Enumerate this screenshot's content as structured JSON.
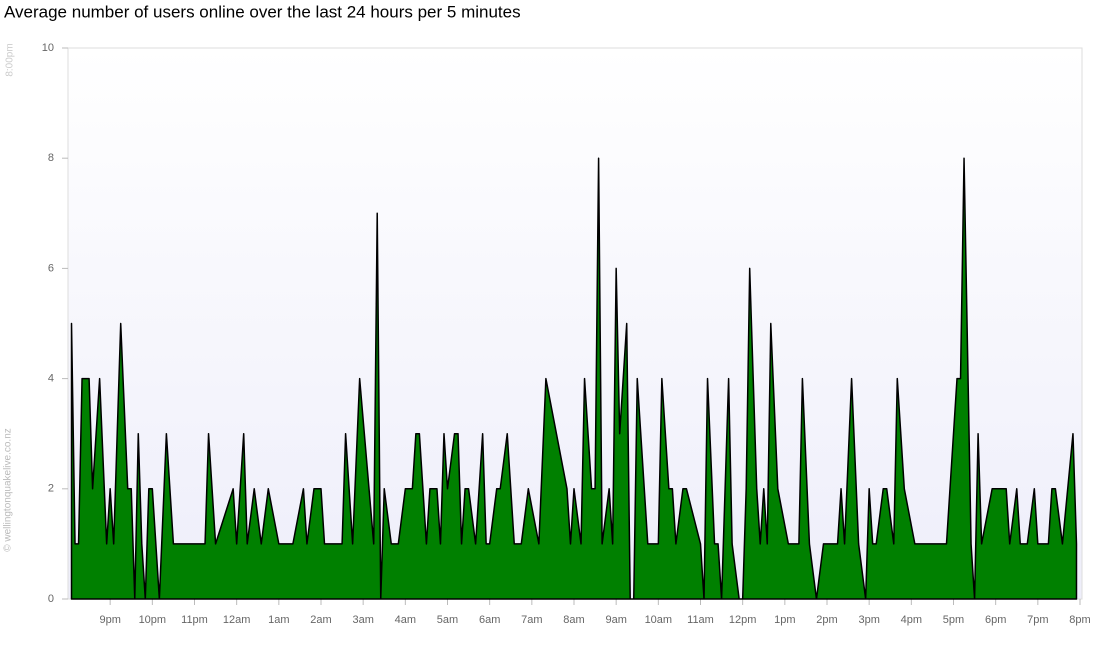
{
  "chart_data": {
    "type": "area",
    "title": "Average number of users online over the last 24 hours per 5 minutes",
    "start_label": "8:00pm",
    "credit": "© wellingtonquakelive.co.nz",
    "x": [
      5,
      10,
      15,
      20,
      30,
      35,
      45,
      55,
      60,
      65,
      75,
      85,
      90,
      95,
      100,
      105,
      110,
      115,
      120,
      130,
      140,
      150,
      195,
      200,
      210,
      235,
      240,
      250,
      255,
      265,
      275,
      285,
      300,
      320,
      335,
      340,
      350,
      360,
      365,
      390,
      395,
      405,
      415,
      435,
      440,
      445,
      450,
      460,
      470,
      480,
      490,
      495,
      500,
      510,
      515,
      525,
      530,
      535,
      540,
      550,
      555,
      560,
      565,
      570,
      580,
      590,
      595,
      600,
      610,
      615,
      625,
      635,
      645,
      655,
      670,
      680,
      710,
      715,
      720,
      730,
      735,
      745,
      750,
      755,
      760,
      770,
      775,
      780,
      785,
      795,
      800,
      805,
      810,
      820,
      825,
      840,
      845,
      855,
      860,
      865,
      875,
      880,
      900,
      905,
      910,
      920,
      925,
      930,
      940,
      945,
      955,
      960,
      965,
      970,
      980,
      985,
      990,
      995,
      1000,
      1010,
      1025,
      1040,
      1045,
      1055,
      1065,
      1075,
      1095,
      1100,
      1105,
      1115,
      1125,
      1135,
      1140,
      1145,
      1150,
      1160,
      1165,
      1175,
      1180,
      1190,
      1205,
      1250,
      1265,
      1270,
      1275,
      1285,
      1290,
      1295,
      1300,
      1315,
      1335,
      1340,
      1350,
      1355,
      1365,
      1375,
      1380,
      1395,
      1400,
      1405,
      1415,
      1430,
      1435
    ],
    "values": [
      5,
      1,
      1,
      4,
      4,
      2,
      4,
      1,
      2,
      1,
      5,
      2,
      2,
      0,
      3,
      1,
      0,
      2,
      2,
      0,
      3,
      1,
      1,
      3,
      1,
      2,
      1,
      3,
      1,
      2,
      1,
      2,
      1,
      1,
      2,
      1,
      2,
      2,
      1,
      1,
      3,
      1,
      4,
      1,
      7,
      0,
      2,
      1,
      1,
      2,
      2,
      3,
      3,
      1,
      2,
      2,
      1,
      3,
      2,
      3,
      3,
      1,
      2,
      2,
      1,
      3,
      1,
      1,
      2,
      2,
      3,
      1,
      1,
      2,
      1,
      4,
      2,
      1,
      2,
      1,
      4,
      2,
      2,
      8,
      1,
      2,
      1,
      6,
      3,
      5,
      0,
      0,
      4,
      2,
      1,
      1,
      4,
      2,
      2,
      1,
      2,
      2,
      1,
      0,
      4,
      1,
      1,
      0,
      4,
      1,
      0,
      0,
      2,
      6,
      2,
      1,
      2,
      1,
      5,
      2,
      1,
      1,
      4,
      1,
      0,
      1,
      1,
      2,
      1,
      4,
      1,
      0,
      2,
      1,
      1,
      2,
      2,
      1,
      4,
      2,
      1,
      1,
      4,
      4,
      8,
      1,
      0,
      3,
      1,
      2,
      2,
      1,
      2,
      1,
      1,
      2,
      1,
      1,
      2,
      2,
      1,
      3,
      1
    ],
    "color": "#008000",
    "xlim": [
      0,
      1440
    ],
    "xticks": [
      {
        "value": 60,
        "label": "9pm"
      },
      {
        "value": 120,
        "label": "10pm"
      },
      {
        "value": 180,
        "label": "11pm"
      },
      {
        "value": 240,
        "label": "12am"
      },
      {
        "value": 300,
        "label": "1am"
      },
      {
        "value": 360,
        "label": "2am"
      },
      {
        "value": 420,
        "label": "3am"
      },
      {
        "value": 480,
        "label": "4am"
      },
      {
        "value": 540,
        "label": "5am"
      },
      {
        "value": 600,
        "label": "6am"
      },
      {
        "value": 660,
        "label": "7am"
      },
      {
        "value": 720,
        "label": "8am"
      },
      {
        "value": 780,
        "label": "9am"
      },
      {
        "value": 840,
        "label": "10am"
      },
      {
        "value": 900,
        "label": "11am"
      },
      {
        "value": 960,
        "label": "12pm"
      },
      {
        "value": 1020,
        "label": "1pm"
      },
      {
        "value": 1080,
        "label": "2pm"
      },
      {
        "value": 1140,
        "label": "3pm"
      },
      {
        "value": 1200,
        "label": "4pm"
      },
      {
        "value": 1260,
        "label": "5pm"
      },
      {
        "value": 1320,
        "label": "6pm"
      },
      {
        "value": 1380,
        "label": "7pm"
      },
      {
        "value": 1440,
        "label": "8pm"
      }
    ],
    "ylim": [
      0,
      10
    ],
    "yticks": [
      0,
      2,
      4,
      6,
      8,
      10
    ]
  }
}
